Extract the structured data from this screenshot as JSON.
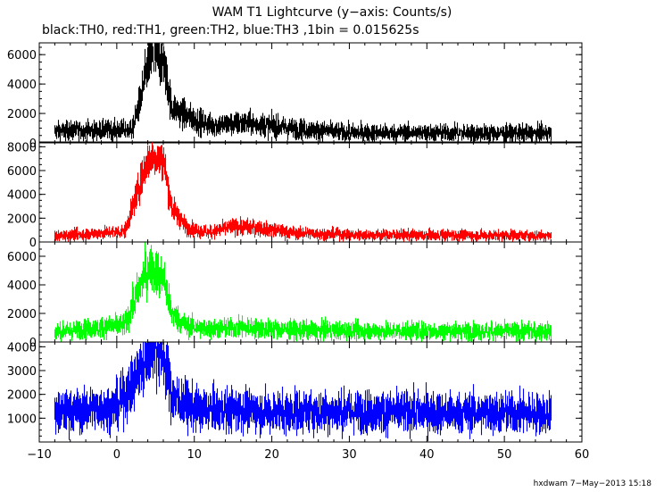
{
  "title": "WAM T1 Lightcurve (y−axis: Counts/s)",
  "subtitle": "black:TH0, red:TH1, green:TH2, blue:TH3 ,1bin = 0.015625s",
  "footer": "hxdwam  7−May−2013 15:18",
  "chart_data": {
    "type": "line",
    "x_range": [
      -10,
      60
    ],
    "x_ticks": [
      "−10",
      "0",
      "10",
      "20",
      "30",
      "40",
      "50",
      "60"
    ],
    "x_tick_values": [
      -10,
      0,
      10,
      20,
      30,
      40,
      50,
      60
    ],
    "x_data_span": [
      -8,
      56
    ],
    "panels": [
      {
        "name": "TH0",
        "color": "#000000",
        "ylim": [
          0,
          6800
        ],
        "y_ticks": [
          0,
          2000,
          4000,
          6000
        ],
        "y_tick_labels": [
          "0",
          "2000",
          "4000",
          "6000"
        ],
        "profile": [
          [
            -8,
            800
          ],
          [
            2,
            900
          ],
          [
            3,
            3000
          ],
          [
            4,
            5500
          ],
          [
            5,
            5700
          ],
          [
            6,
            5500
          ],
          [
            7,
            2500
          ],
          [
            9,
            1800
          ],
          [
            12,
            1200
          ],
          [
            15,
            1300
          ],
          [
            18,
            1300
          ],
          [
            22,
            1000
          ],
          [
            30,
            700
          ],
          [
            56,
            650
          ]
        ],
        "noise": 350
      },
      {
        "name": "TH1",
        "color": "#ff0000",
        "ylim": [
          0,
          8400
        ],
        "y_ticks": [
          0,
          2000,
          4000,
          6000,
          8000
        ],
        "y_tick_labels": [
          "0",
          "2000",
          "4000",
          "6000",
          "8000"
        ],
        "profile": [
          [
            -8,
            500
          ],
          [
            1,
            900
          ],
          [
            3,
            5000
          ],
          [
            4,
            7000
          ],
          [
            5,
            7200
          ],
          [
            6,
            6800
          ],
          [
            7,
            3000
          ],
          [
            9,
            1200
          ],
          [
            12,
            800
          ],
          [
            15,
            1300
          ],
          [
            18,
            1200
          ],
          [
            22,
            800
          ],
          [
            30,
            600
          ],
          [
            56,
            550
          ]
        ],
        "noise": 300
      },
      {
        "name": "TH2",
        "color": "#00ff00",
        "ylim": [
          0,
          7000
        ],
        "y_ticks": [
          0,
          2000,
          4000,
          6000
        ],
        "y_tick_labels": [
          "0",
          "2000",
          "4000",
          "6000"
        ],
        "profile": [
          [
            -8,
            700
          ],
          [
            1,
            1200
          ],
          [
            3,
            4000
          ],
          [
            4,
            5200
          ],
          [
            5,
            5000
          ],
          [
            6,
            4500
          ],
          [
            7,
            2000
          ],
          [
            9,
            1100
          ],
          [
            12,
            900
          ],
          [
            16,
            1000
          ],
          [
            25,
            800
          ],
          [
            56,
            750
          ]
        ],
        "noise": 350
      },
      {
        "name": "TH3",
        "color": "#0000ff",
        "ylim": [
          0,
          4200
        ],
        "y_ticks": [
          1000,
          2000,
          3000,
          4000
        ],
        "y_tick_labels": [
          "1000",
          "2000",
          "3000",
          "4000"
        ],
        "profile": [
          [
            -8,
            1200
          ],
          [
            0,
            1500
          ],
          [
            2,
            2400
          ],
          [
            4,
            3900
          ],
          [
            5,
            4000
          ],
          [
            6,
            3600
          ],
          [
            7,
            1900
          ],
          [
            10,
            1400
          ],
          [
            20,
            1300
          ],
          [
            56,
            1200
          ]
        ],
        "noise": 380
      }
    ]
  }
}
